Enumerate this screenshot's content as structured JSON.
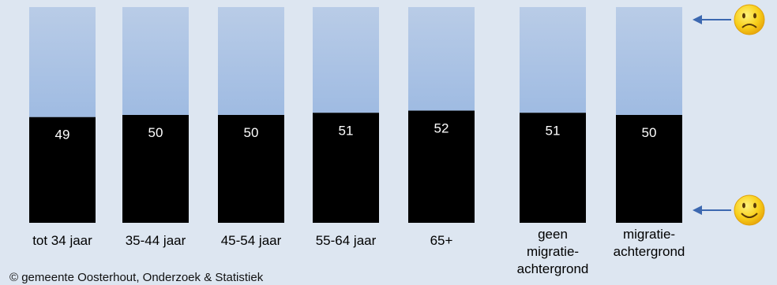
{
  "chart_data": {
    "type": "bar",
    "title": "",
    "xlabel": "",
    "ylabel": "",
    "ylim": [
      0,
      100
    ],
    "grid": false,
    "legend": "none",
    "categories": [
      [
        "tot 34 jaar"
      ],
      [
        "35-44 jaar"
      ],
      [
        "45-54 jaar"
      ],
      [
        "55-64 jaar"
      ],
      [
        "65+"
      ],
      [
        "geen",
        "migratie-",
        "achtergrond"
      ],
      [
        "migratie-",
        "achtergrond"
      ]
    ],
    "values": [
      49,
      50,
      50,
      51,
      52,
      51,
      50
    ],
    "colors": {
      "value_fill": "#000000",
      "remainder_top": "#b9cce7",
      "remainder_bottom": "#9fbbe2",
      "value_label": "#ffffff",
      "background": "#dde6f1",
      "arrow": "#3c68b0",
      "smiley_face": "#f6c20f"
    },
    "scale_markers": [
      {
        "end": "top",
        "icon": "sad-smiley-icon"
      },
      {
        "end": "bottom",
        "icon": "happy-smiley-icon"
      }
    ]
  },
  "footnote": "© gemeente Oosterhout, Onderzoek & Statistiek"
}
